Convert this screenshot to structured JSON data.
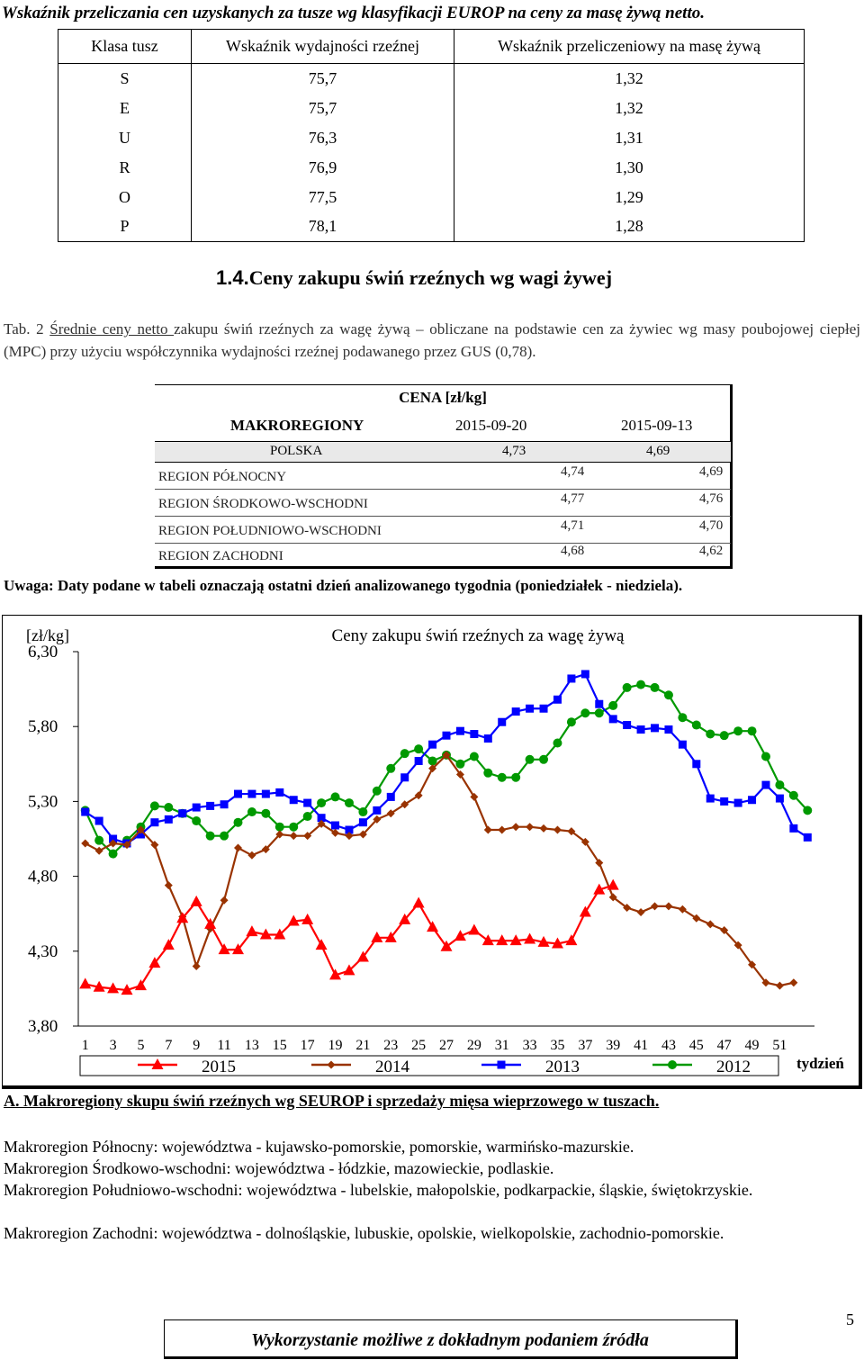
{
  "top_title": "Wskaźnik przeliczania cen uzyskanych za tusze wg klasyfikacji EUROP na ceny za masę żywą netto.",
  "table1": {
    "headers": [
      "Klasa tusz",
      "Wskaźnik wydajności rzeźnej",
      "Wskaźnik przeliczeniowy na masę żywą"
    ],
    "rows": [
      [
        "S",
        "75,7",
        "1,32"
      ],
      [
        "E",
        "75,7",
        "1,32"
      ],
      [
        "U",
        "76,3",
        "1,31"
      ],
      [
        "R",
        "76,9",
        "1,30"
      ],
      [
        "O",
        "77,5",
        "1,29"
      ],
      [
        "P",
        "78,1",
        "1,28"
      ]
    ]
  },
  "section": {
    "number": "1.4.",
    "title": "Ceny zakupu świń rzeźnych wg wagi żywej"
  },
  "paragraph": {
    "a": "Tab. 2 ",
    "b": "Średnie ceny netto ",
    "c": "zakupu świń rzeźnych za wagę żywą – obliczane na podstawie cen za żywiec wg masy poubojowej ciepłej (MPC) przy użyciu współczynnika wydajności rzeźnej podawanego przez GUS (0,78)."
  },
  "table2": {
    "caption": "CENA [zł/kg]",
    "col_region": "MAKROREGIONY",
    "col_d1": "2015-09-20",
    "col_d2": "2015-09-13",
    "poland": {
      "name": "POLSKA",
      "v1": "4,73",
      "v2": "4,69"
    },
    "regions": [
      {
        "name": "REGION PÓŁNOCNY",
        "v1": "4,74",
        "v2": "4,69"
      },
      {
        "name": "REGION  ŚRODKOWO-WSCHODNI",
        "v1": "4,77",
        "v2": "4,76"
      },
      {
        "name": "REGION POŁUDNIOWO-WSCHODNI",
        "v1": "4,71",
        "v2": "4,70"
      },
      {
        "name": "REGION ZACHODNI",
        "v1": "4,68",
        "v2": "4,62"
      }
    ]
  },
  "note": "Uwaga: Daty podane w tabeli oznaczają ostatni dzień analizowanego tygodnia (poniedziałek - niedziela).",
  "chart_data": {
    "type": "line",
    "title": "Ceny zakupu świń rzeźnych  za wagę żywą",
    "ylabel": "[zł/kg]",
    "xlabel": "tydzień",
    "ylim": [
      3.8,
      6.3
    ],
    "yticks": [
      "6,30",
      "5,80",
      "5,30",
      "4,80",
      "4,30",
      "3,80"
    ],
    "xticks": [
      "1",
      "3",
      "5",
      "7",
      "9",
      "11",
      "13",
      "15",
      "17",
      "19",
      "21",
      "23",
      "25",
      "27",
      "29",
      "31",
      "33",
      "35",
      "37",
      "39",
      "41",
      "43",
      "45",
      "47",
      "49",
      "51"
    ],
    "legend_position": "bottom",
    "series": [
      {
        "name": "2015",
        "color": "#ff0000",
        "marker": "triangle",
        "values": [
          4.08,
          4.06,
          4.05,
          4.04,
          4.07,
          4.22,
          4.34,
          4.52,
          4.63,
          4.48,
          4.31,
          4.31,
          4.43,
          4.41,
          4.41,
          4.5,
          4.51,
          4.34,
          4.14,
          4.17,
          4.26,
          4.39,
          4.39,
          4.51,
          4.62,
          4.46,
          4.33,
          4.4,
          4.44,
          4.37,
          4.37,
          4.37,
          4.38,
          4.36,
          4.35,
          4.37,
          4.56,
          4.71,
          4.74
        ]
      },
      {
        "name": "2014",
        "color": "#993300",
        "marker": "diamond",
        "values": [
          5.02,
          4.97,
          5.02,
          5.01,
          5.11,
          5.01,
          4.74,
          4.53,
          4.2,
          4.45,
          4.64,
          4.99,
          4.94,
          4.98,
          5.08,
          5.07,
          5.07,
          5.15,
          5.09,
          5.07,
          5.08,
          5.18,
          5.22,
          5.28,
          5.34,
          5.52,
          5.61,
          5.48,
          5.33,
          5.11,
          5.11,
          5.13,
          5.13,
          5.12,
          5.11,
          5.1,
          5.03,
          4.89,
          4.66,
          4.59,
          4.56,
          4.6,
          4.6,
          4.58,
          4.52,
          4.48,
          4.44,
          4.34,
          4.21,
          4.09,
          4.07,
          4.09
        ]
      },
      {
        "name": "2013",
        "color": "#0000ff",
        "marker": "square",
        "values": [
          5.23,
          5.17,
          5.05,
          5.02,
          5.08,
          5.16,
          5.18,
          5.22,
          5.26,
          5.27,
          5.28,
          5.35,
          5.35,
          5.35,
          5.36,
          5.31,
          5.29,
          5.19,
          5.14,
          5.11,
          5.16,
          5.24,
          5.33,
          5.46,
          5.57,
          5.68,
          5.74,
          5.77,
          5.75,
          5.72,
          5.83,
          5.9,
          5.92,
          5.92,
          5.98,
          6.12,
          6.15,
          5.95,
          5.85,
          5.81,
          5.78,
          5.79,
          5.78,
          5.68,
          5.55,
          5.32,
          5.3,
          5.29,
          5.31,
          5.41,
          5.32,
          5.12,
          5.06
        ]
      },
      {
        "name": "2012",
        "color": "#009900",
        "marker": "circle",
        "values": [
          5.24,
          5.04,
          4.95,
          5.04,
          5.13,
          5.27,
          5.26,
          5.22,
          5.17,
          5.07,
          5.07,
          5.16,
          5.23,
          5.22,
          5.13,
          5.13,
          5.2,
          5.29,
          5.33,
          5.29,
          5.23,
          5.37,
          5.52,
          5.62,
          5.65,
          5.57,
          5.61,
          5.55,
          5.6,
          5.49,
          5.46,
          5.46,
          5.58,
          5.58,
          5.69,
          5.83,
          5.89,
          5.89,
          5.94,
          6.06,
          6.08,
          6.06,
          6.01,
          5.86,
          5.81,
          5.75,
          5.74,
          5.77,
          5.77,
          5.6,
          5.41,
          5.34,
          5.24
        ]
      }
    ]
  },
  "sectionA": "A. Makroregiony skupu świń rzeźnych wg SEUROP i sprzedaży mięsa wieprzowego w tuszach.",
  "makro": [
    "Makroregion Północny: województwa - kujawsko-pomorskie, pomorskie, warmińsko-mazurskie.",
    "Makroregion Środkowo-wschodni: województwa - łódzkie, mazowieckie, podlaskie.",
    "Makroregion Południowo-wschodni: województwa - lubelskie, małopolskie, podkarpackie, śląskie, świętokrzyskie.",
    "Makroregion Zachodni: województwa - dolnośląskie, lubuskie, opolskie, wielkopolskie, zachodnio-pomorskie."
  ],
  "footer": "Wykorzystanie możliwe z dokładnym podaniem źródła",
  "page_number": "5"
}
